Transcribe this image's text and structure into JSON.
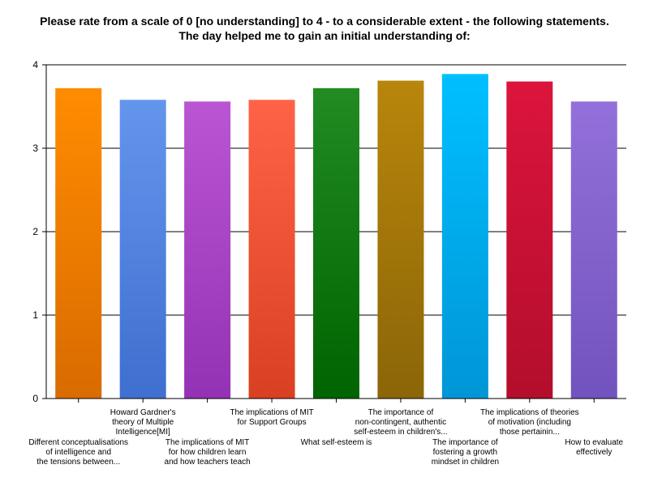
{
  "chart_data": {
    "type": "bar",
    "title": "Please rate from a scale of 0 [no understanding] to 4 - to a considerable extent - the following statements.  The day helped me to gain an initial understanding of:",
    "xlabel": "",
    "ylabel": "",
    "ylim": [
      0,
      4
    ],
    "yticks": [
      "0",
      "1",
      "2",
      "3",
      "4"
    ],
    "grid": true,
    "categories": [
      "Different conceptualisations of intelligence and the tensions between...",
      "Howard Gardner's theory of Multiple Intelligence[MI]",
      "The implications of MIT for how children learn and how teachers teach",
      "The implications of MIT for Support Groups",
      "What self-esteem is",
      "The importance of non-contingent, authentic self-esteem in children's...",
      "The importance of fostering a growth mindset in children",
      "The implications of theories of motivation (including those pertainin...",
      "How to evaluate effectively"
    ],
    "category_label_lines": [
      [
        "Different conceptualisations",
        "of intelligence and",
        "the tensions between..."
      ],
      [
        "Howard Gardner's",
        "theory of Multiple",
        "Intelligence[MI]"
      ],
      [
        "The implications of MIT",
        "for how children learn",
        "and how teachers teach"
      ],
      [
        "The implications of MIT",
        "for Support Groups"
      ],
      [
        "What self-esteem is"
      ],
      [
        "The importance of",
        "non-contingent, authentic",
        "self-esteem in children's..."
      ],
      [
        "The importance of",
        "fostering a growth",
        "mindset in children"
      ],
      [
        "The implications of theories",
        "of motivation (including",
        "those pertainin..."
      ],
      [
        "How to evaluate",
        "effectively"
      ]
    ],
    "values": [
      3.72,
      3.58,
      3.56,
      3.58,
      3.72,
      3.81,
      3.89,
      3.8,
      3.56
    ],
    "colors": [
      "#ff8c00",
      "#6495ed",
      "#ba55d3",
      "#ff6347",
      "#228b22",
      "#b8860b",
      "#00bfff",
      "#dc143c",
      "#9370db"
    ],
    "colors_dark": [
      "#d96b00",
      "#3f6fcf",
      "#9432b5",
      "#d94021",
      "#006400",
      "#8b6508",
      "#0096d6",
      "#b30e2c",
      "#7253bd"
    ]
  }
}
